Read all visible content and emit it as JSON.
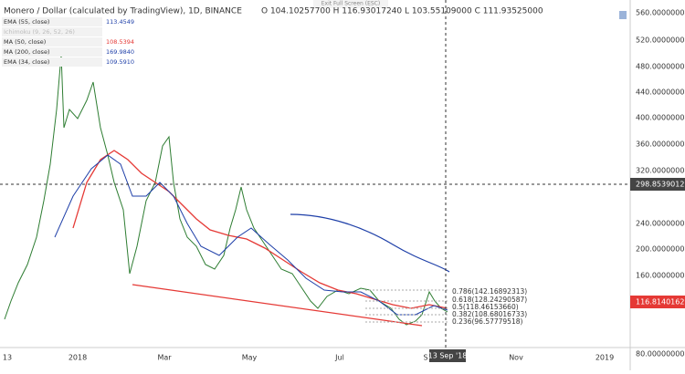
{
  "header": {
    "title": "Monero / Dollar (calculated by TradingView), 1D, BINANCE",
    "ohlc": "O 104.10257700 H 116.93017240 L 103.55109000 C 111.93525000",
    "exit": "Exit Full Screen (ESC)"
  },
  "indicators": [
    {
      "name": "EMA (55, close)",
      "value": "113.4549"
    },
    {
      "name": "Ichimoku (9, 26, 52, 26)",
      "value": ""
    },
    {
      "name": "MA (50, close)",
      "value": "108.5394"
    },
    {
      "name": "MA (200, close)",
      "value": "169.9840"
    },
    {
      "name": "EMA (34, close)",
      "value": "109.5910"
    }
  ],
  "price_axis": [
    "560.00000000",
    "520.00000000",
    "480.00000000",
    "440.00000000",
    "400.00000000",
    "360.00000000",
    "320.00000000",
    "240.00000000",
    "200.00000000",
    "160.00000000",
    "80.00000000"
  ],
  "price_badges": {
    "crosshair": "298.85390122",
    "last": "116.81401620"
  },
  "time_axis": [
    "13",
    "2018",
    "Mar",
    "May",
    "Jul",
    "S",
    "Nov",
    "2019"
  ],
  "time_badge": "13 Sep '18",
  "fib": [
    "0.786(142.16892313)",
    "0.618(128.24290587)",
    "0.5(118.46153660)",
    "0.382(108.68016733)",
    "0.236(96.57779518)"
  ]
}
